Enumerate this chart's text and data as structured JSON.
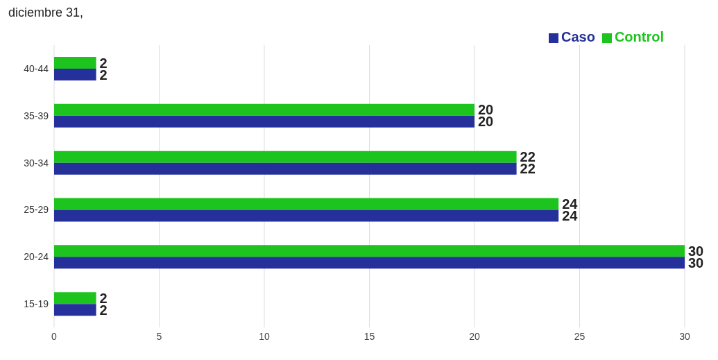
{
  "chart_data": {
    "type": "bar",
    "orientation": "horizontal",
    "title": "diciembre 31,",
    "categories": [
      "40-44",
      "35-39",
      "30-34",
      "25-29",
      "20-24",
      "15-19"
    ],
    "series": [
      {
        "name": "Control",
        "color": "#1ec41e",
        "values": [
          2,
          20,
          22,
          24,
          30,
          2
        ]
      },
      {
        "name": "Caso",
        "color": "#25309a",
        "values": [
          2,
          20,
          22,
          24,
          30,
          2
        ]
      }
    ],
    "xlim": [
      0,
      30
    ],
    "xticks": [
      0,
      5,
      10,
      15,
      20,
      25,
      30
    ],
    "grid": "x",
    "legend": "top right",
    "data_labels": true
  }
}
